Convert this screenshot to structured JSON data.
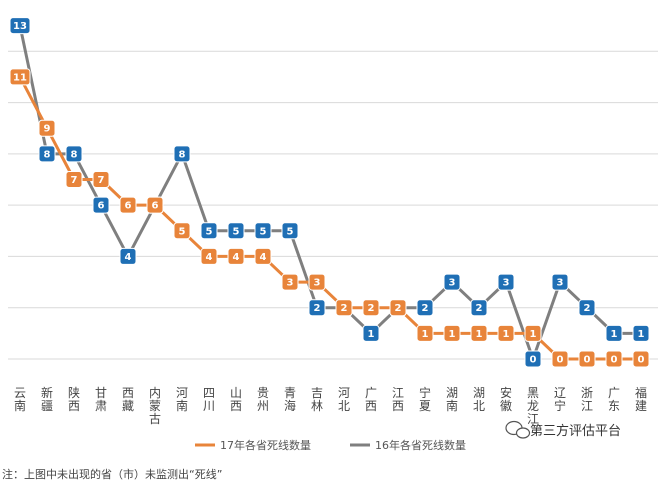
{
  "chart_data": {
    "type": "line",
    "categories": [
      "云南",
      "新疆",
      "陕西",
      "甘肃",
      "西藏",
      "内蒙古",
      "河南",
      "四川",
      "山西",
      "贵州",
      "青海",
      "吉林",
      "河北",
      "广西",
      "江西",
      "宁夏",
      "湖南",
      "湖北",
      "安徽",
      "黑龙江",
      "辽宁",
      "浙江",
      "广东",
      "福建"
    ],
    "series": [
      {
        "name": "17年各省死线数量",
        "color": "#E8843A",
        "values": [
          11,
          9,
          7,
          7,
          6,
          6,
          5,
          4,
          4,
          4,
          3,
          3,
          2,
          2,
          2,
          1,
          1,
          1,
          1,
          1,
          0,
          0,
          0,
          0
        ]
      },
      {
        "name": "16年各省死线数量",
        "color": "#7F7F7F",
        "label_color": "#1F6FB5",
        "values": [
          13,
          8,
          8,
          6,
          4,
          6,
          8,
          5,
          5,
          5,
          5,
          2,
          2,
          1,
          2,
          2,
          3,
          2,
          3,
          0,
          3,
          2,
          1,
          1
        ]
      }
    ],
    "ylim": [
      0,
      14
    ],
    "grid": true,
    "legend_position": "bottom"
  },
  "note": "注：上图中未出现的省（市）未监测出“死线”",
  "watermark": "第三方评估平台"
}
